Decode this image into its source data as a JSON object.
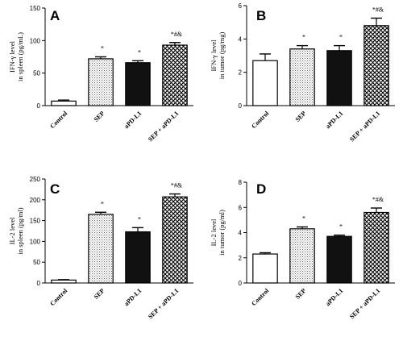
{
  "chart_data": [
    {
      "type": "bar",
      "panel_label": "A",
      "ylabel": [
        "IFN-γ level",
        "in spleen (pg/mL)"
      ],
      "categories": [
        "Control",
        "SEP",
        "aPD-L1",
        "SEP + aPD-L1"
      ],
      "values": [
        7,
        72,
        66,
        93
      ],
      "errors": [
        1.5,
        3,
        3,
        4
      ],
      "annotations": [
        "",
        "*",
        "*",
        "*#&"
      ],
      "ylim": [
        0,
        150
      ],
      "yticks": [
        "0",
        "50",
        "100",
        "150"
      ],
      "fills": [
        "white",
        "dotted",
        "black",
        "checker"
      ]
    },
    {
      "type": "bar",
      "panel_label": "B",
      "ylabel": [
        "IFN-γ level",
        "in tumor (pg/mg)"
      ],
      "categories": [
        "Control",
        "SEP",
        "aPD-L1",
        "SEP + aPD-L1"
      ],
      "values": [
        2.7,
        3.4,
        3.3,
        4.8
      ],
      "errors": [
        0.4,
        0.2,
        0.3,
        0.45
      ],
      "annotations": [
        "",
        "*",
        "*",
        "*#&"
      ],
      "ylim": [
        0,
        6
      ],
      "yticks": [
        "0",
        "2",
        "4",
        "6"
      ],
      "fills": [
        "white",
        "dotted",
        "black",
        "checker"
      ]
    },
    {
      "type": "bar",
      "panel_label": "C",
      "ylabel": [
        "IL-2 level",
        "in spleen (pg/ml)"
      ],
      "categories": [
        "Control",
        "SEP",
        "aPD-L1",
        "SEP + aPD-L1"
      ],
      "values": [
        7,
        165,
        123,
        207
      ],
      "errors": [
        1,
        5,
        10,
        7
      ],
      "annotations": [
        "",
        "*",
        "*",
        "*#&"
      ],
      "ylim": [
        0,
        250
      ],
      "yticks": [
        "0",
        "50",
        "100",
        "150",
        "200",
        "250"
      ],
      "fills": [
        "white",
        "dotted",
        "black",
        "checker"
      ]
    },
    {
      "type": "bar",
      "panel_label": "D",
      "ylabel": [
        "IL-2 level",
        "in tumor (pg/ml)"
      ],
      "categories": [
        "Control",
        "SEP",
        "aPD-L1",
        "SEP + aPD-L1"
      ],
      "values": [
        2.3,
        4.3,
        3.7,
        5.6
      ],
      "errors": [
        0.1,
        0.15,
        0.1,
        0.35
      ],
      "annotations": [
        "",
        "*",
        "*",
        "*#&"
      ],
      "ylim": [
        0,
        8
      ],
      "yticks": [
        "0",
        "2",
        "4",
        "6",
        "8"
      ],
      "fills": [
        "white",
        "dotted",
        "black",
        "checker"
      ]
    }
  ]
}
